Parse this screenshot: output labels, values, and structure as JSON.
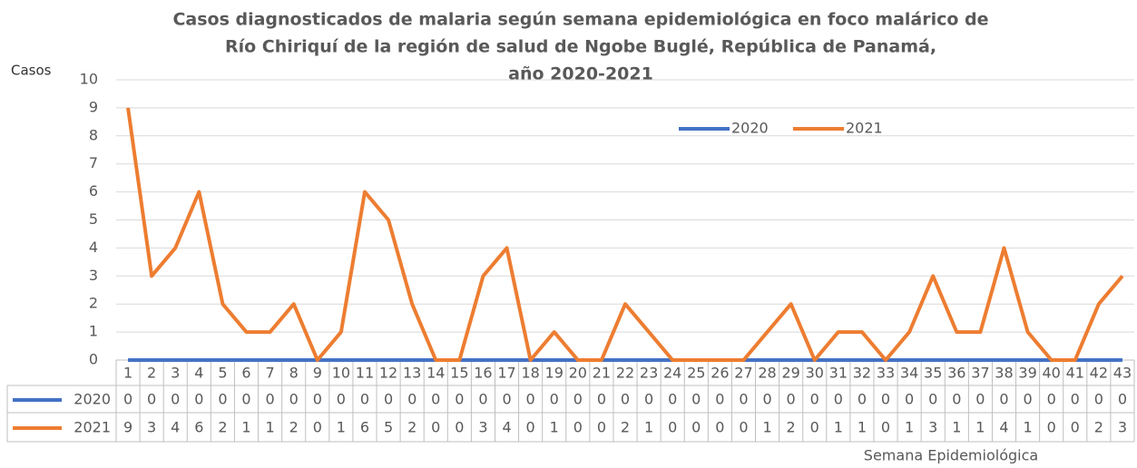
{
  "chart_data": {
    "type": "line",
    "title": [
      "Casos diagnosticados  de malaria según semana epidemiológica en foco malárico de",
      "Río Chiriquí de la región de salud de Ngobe Buglé, República de Panamá,",
      "año 2020-2021"
    ],
    "y_label": "Casos",
    "x_label": "Semana Epidemiológica",
    "categories": [
      "1",
      "2",
      "3",
      "4",
      "5",
      "6",
      "7",
      "8",
      "9",
      "10",
      "11",
      "12",
      "13",
      "14",
      "15",
      "16",
      "17",
      "18",
      "19",
      "20",
      "21",
      "22",
      "23",
      "24",
      "25",
      "26",
      "27",
      "28",
      "29",
      "30",
      "31",
      "32",
      "33",
      "34",
      "35",
      "36",
      "37",
      "38",
      "39",
      "40",
      "41",
      "42",
      "43"
    ],
    "series": [
      {
        "name": "2020",
        "color": "#4472c4",
        "values": [
          0,
          0,
          0,
          0,
          0,
          0,
          0,
          0,
          0,
          0,
          0,
          0,
          0,
          0,
          0,
          0,
          0,
          0,
          0,
          0,
          0,
          0,
          0,
          0,
          0,
          0,
          0,
          0,
          0,
          0,
          0,
          0,
          0,
          0,
          0,
          0,
          0,
          0,
          0,
          0,
          0,
          0,
          0
        ]
      },
      {
        "name": "2021",
        "color": "#ed7d31",
        "values": [
          9,
          3,
          4,
          6,
          2,
          1,
          1,
          2,
          0,
          1,
          6,
          5,
          2,
          0,
          0,
          3,
          4,
          0,
          1,
          0,
          0,
          2,
          1,
          0,
          0,
          0,
          0,
          1,
          2,
          0,
          1,
          1,
          0,
          1,
          3,
          1,
          1,
          4,
          1,
          0,
          0,
          2,
          3
        ]
      }
    ],
    "ylim": [
      0,
      10
    ],
    "yticks": [
      0,
      1,
      2,
      3,
      4,
      5,
      6,
      7,
      8,
      9,
      10
    ],
    "grid": true,
    "legend": "top-right",
    "data_table": true
  }
}
